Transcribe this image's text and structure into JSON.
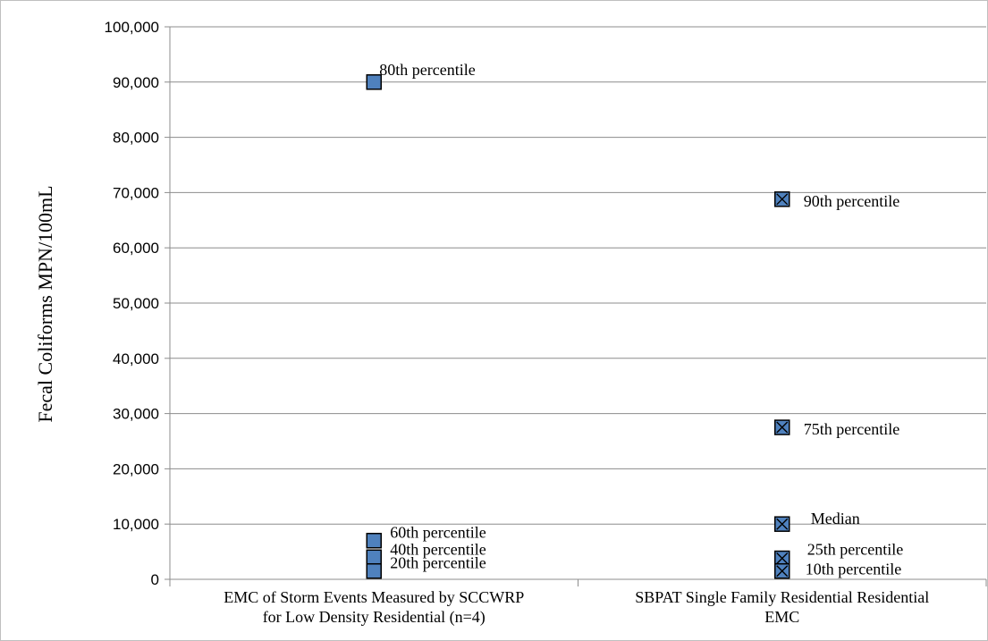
{
  "chart_data": {
    "type": "scatter",
    "ylabel": "Fecal Coliforms MPN/100mL",
    "ylim": [
      0,
      100000
    ],
    "y_ticks": [
      0,
      10000,
      20000,
      30000,
      40000,
      50000,
      60000,
      70000,
      80000,
      90000,
      100000
    ],
    "y_tick_labels": [
      "0",
      "10,000",
      "20,000",
      "30,000",
      "40,000",
      "50,000",
      "60,000",
      "70,000",
      "80,000",
      "90,000",
      "100,000"
    ],
    "grid": true,
    "categories": [
      [
        "EMC of Storm Events Measured by SCCWRP",
        "for Low Density Residential (n=4)"
      ],
      [
        "SBPAT Single Family Residential Residential",
        "EMC"
      ]
    ],
    "series": [
      {
        "category_index": 0,
        "marker": "square",
        "color": "#4f81bd",
        "points": [
          {
            "label": "80th percentile",
            "y": 90000
          },
          {
            "label": "60th percentile",
            "y": 7000
          },
          {
            "label": "40th percentile",
            "y": 4000
          },
          {
            "label": "20th percentile",
            "y": 1500
          }
        ]
      },
      {
        "category_index": 1,
        "marker": "x-square",
        "color": "#4f81bd",
        "points": [
          {
            "label": "90th percentile",
            "y": 68800
          },
          {
            "label": "75th percentile",
            "y": 27500
          },
          {
            "label": "Median",
            "y": 10000
          },
          {
            "label": "25th percentile",
            "y": 3800
          },
          {
            "label": "10th percentile",
            "y": 1500
          }
        ]
      }
    ]
  }
}
